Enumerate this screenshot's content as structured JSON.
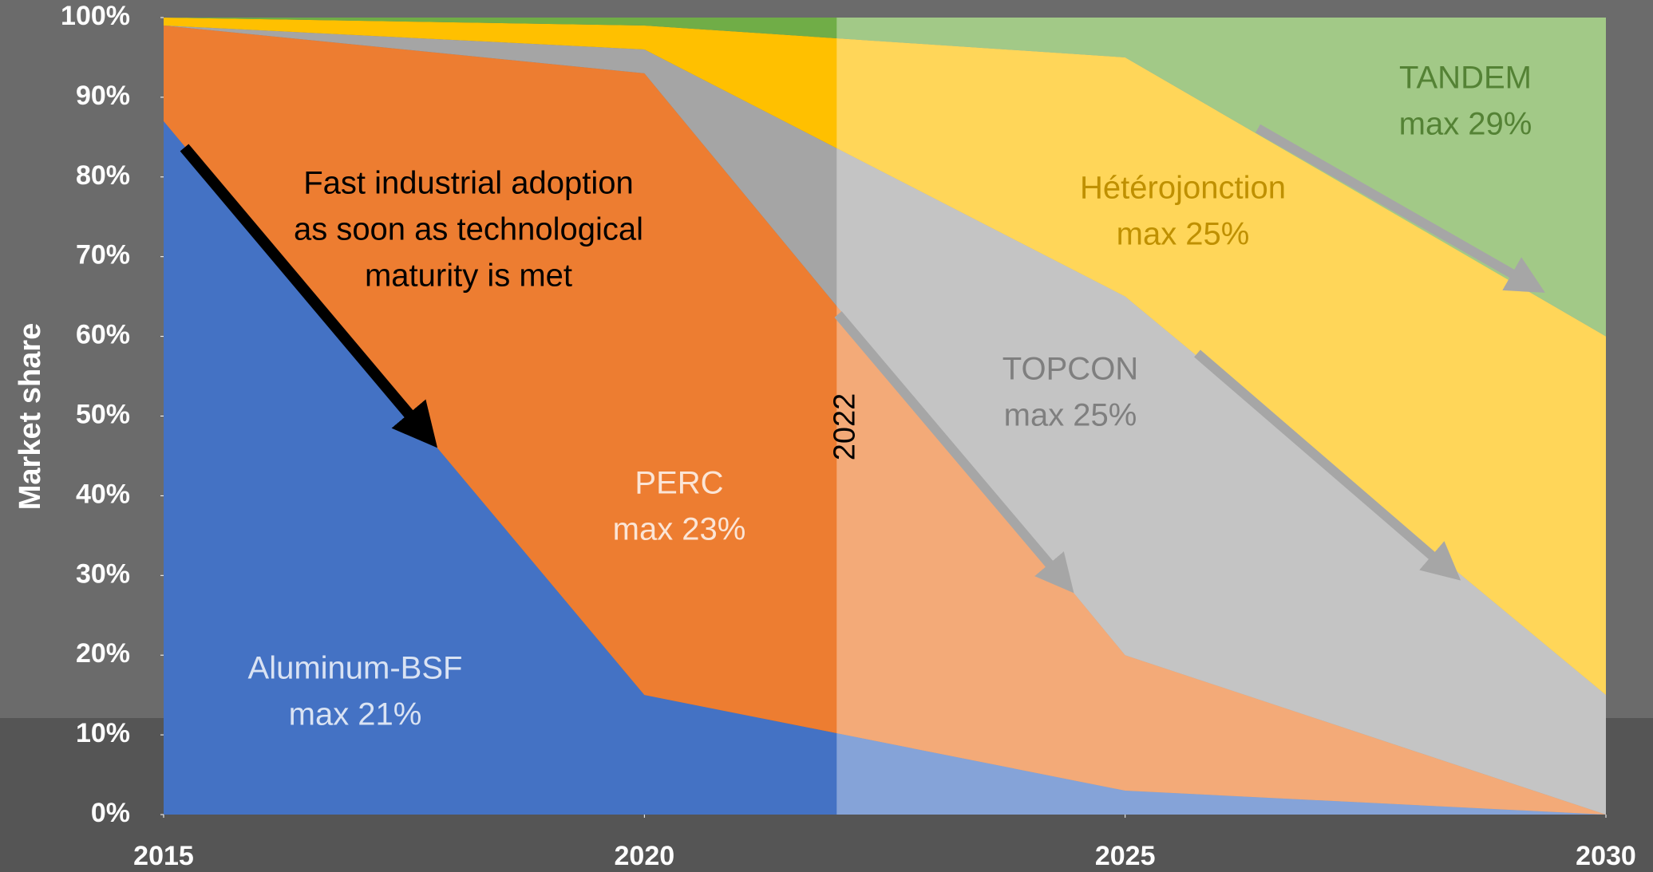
{
  "chart_data": {
    "type": "stacked-area",
    "y_label": "Market share",
    "x": [
      2015,
      2020,
      2025,
      2030
    ],
    "xlim": [
      2015,
      2030
    ],
    "xticks": [
      2015,
      2020,
      2025,
      2030
    ],
    "ylim": [
      0,
      100
    ],
    "yticks": [
      {
        "value": 0,
        "label": "0%"
      },
      {
        "value": 10,
        "label": "10%"
      },
      {
        "value": 20,
        "label": "20%"
      },
      {
        "value": 30,
        "label": "30%"
      },
      {
        "value": 40,
        "label": "40%"
      },
      {
        "value": 50,
        "label": "50%"
      },
      {
        "value": 60,
        "label": "60%"
      },
      {
        "value": 70,
        "label": "70%"
      },
      {
        "value": 80,
        "label": "80%"
      },
      {
        "value": 90,
        "label": "90%"
      },
      {
        "value": 100,
        "label": "100%"
      }
    ],
    "series": [
      {
        "name": "Aluminum-BSF",
        "note": "max 21%",
        "color": "#4472c4",
        "label_color": "#dae3f3",
        "values": [
          87,
          15,
          3,
          0
        ]
      },
      {
        "name": "PERC",
        "note": "max 23%",
        "color": "#ed7d31",
        "label_color": "#fbe5d6",
        "values": [
          12,
          78,
          17,
          0
        ]
      },
      {
        "name": "TOPCON",
        "note": "max 25%",
        "color": "#a5a5a5",
        "label_color": "#7f7f7f",
        "values": [
          0,
          3,
          45,
          15
        ]
      },
      {
        "name": "Hétérojonction",
        "note": "max 25%",
        "color": "#ffc000",
        "label_color": "#bf9000",
        "values": [
          1,
          3,
          30,
          45
        ]
      },
      {
        "name": "TANDEM",
        "note": "max 29%",
        "color": "#70ad47",
        "label_color": "#548235",
        "values": [
          0,
          1,
          5,
          40
        ]
      }
    ],
    "marker_x": 2022,
    "annotation": [
      "Fast industrial adoption",
      "as soon as technological",
      "maturity is met"
    ]
  }
}
